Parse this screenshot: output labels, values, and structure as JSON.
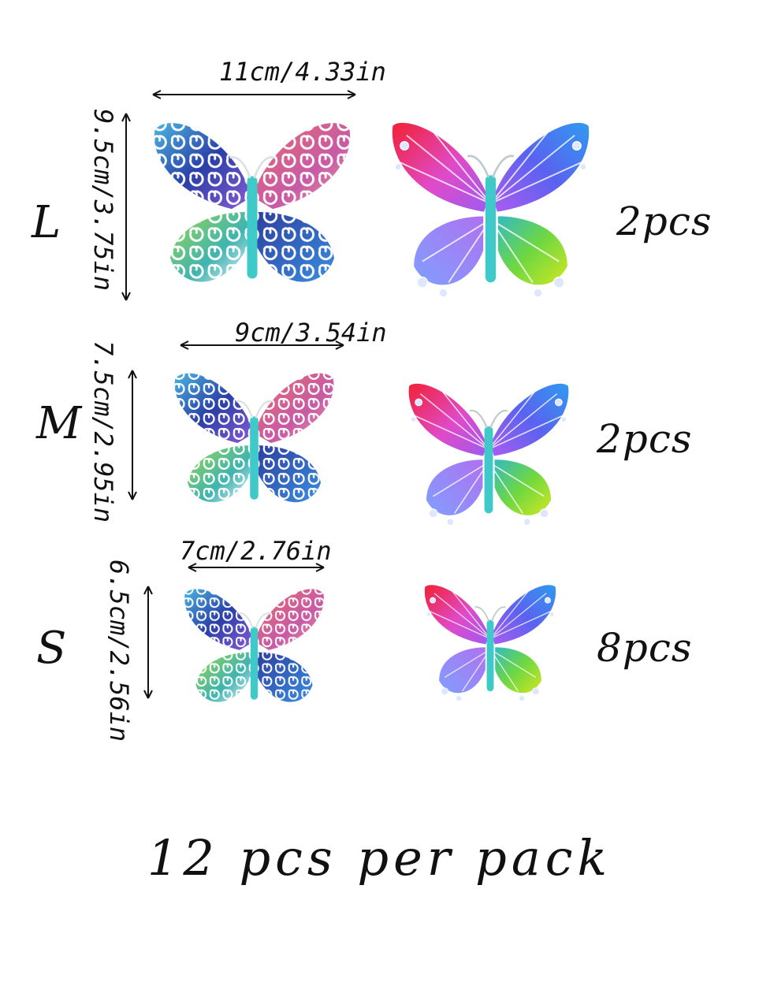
{
  "sizes": [
    {
      "letter": "L",
      "width_label": "11cm/4.33in",
      "height_label": "9.5cm/3.75in",
      "count": "2pcs"
    },
    {
      "letter": "M",
      "width_label": "9cm/3.54in",
      "height_label": "7.5cm/2.95in",
      "count": "2pcs"
    },
    {
      "letter": "S",
      "width_label": "7cm/2.76in",
      "height_label": "6.5cm/2.56in",
      "count": "8pcs"
    }
  ],
  "footer": "12 pcs per pack",
  "colors": {
    "body": "#3fc9c9",
    "red": "#e8283c",
    "purple": "#a35ef0",
    "blue": "#2f7fe8",
    "green": "#8fdc3a"
  }
}
